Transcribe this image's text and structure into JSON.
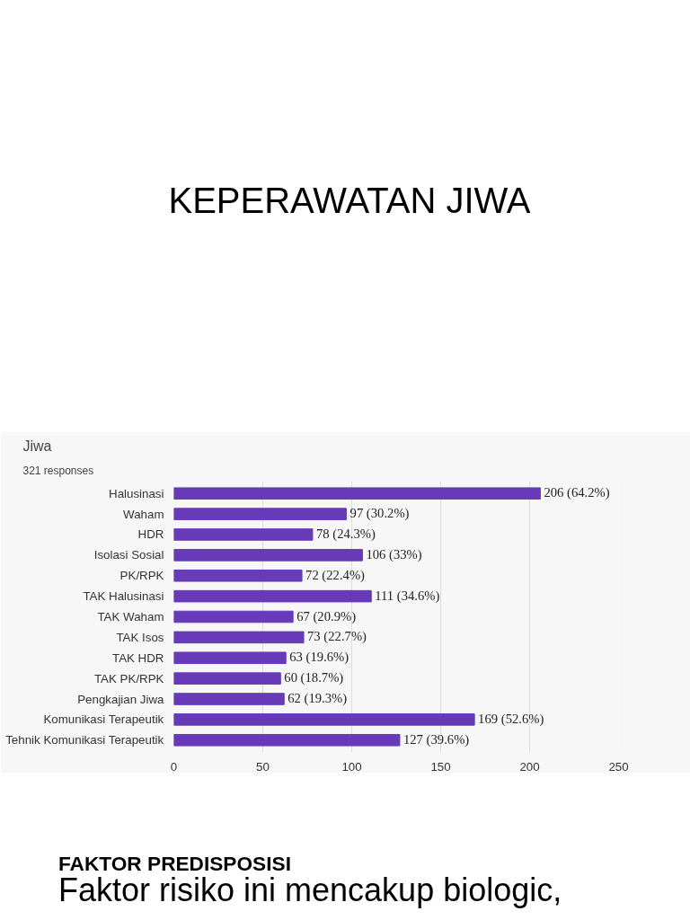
{
  "chart_data": {
    "type": "bar",
    "orientation": "horizontal",
    "title": "Jiwa",
    "subtitle": "321 responses",
    "categories": [
      "Halusinasi",
      "Waham",
      "HDR",
      "Isolasi Sosial",
      "PK/RPK",
      "TAK Halusinasi",
      "TAK Waham",
      "TAK Isos",
      "TAK HDR",
      "TAK PK/RPK",
      "Pengkajian Jiwa",
      "Komunikasi Terapeutik",
      "Tehnik Komunikasi Terapeutik"
    ],
    "values": [
      206,
      97,
      78,
      106,
      72,
      111,
      67,
      73,
      63,
      60,
      62,
      169,
      127
    ],
    "value_labels": [
      "206 (64.2%)",
      "97 (30.2%)",
      "78 (24.3%)",
      "106 (33%)",
      "72 (22.4%)",
      "111 (34.6%)",
      "67 (20.9%)",
      "73 (22.7%)",
      "63 (19.6%)",
      "60 (18.7%)",
      "62 (19.3%)",
      "169 (52.6%)",
      "127 (39.6%)"
    ],
    "color": "#673ab7",
    "xlim": [
      0,
      250
    ],
    "xticks": [
      0,
      50,
      100,
      150,
      200,
      250
    ],
    "grid": "x",
    "annotations": [
      "KEPERAWATAN JIWA",
      "FAKTOR PREDISPOSISI",
      "Faktor risiko ini mencakup biologic,"
    ]
  }
}
